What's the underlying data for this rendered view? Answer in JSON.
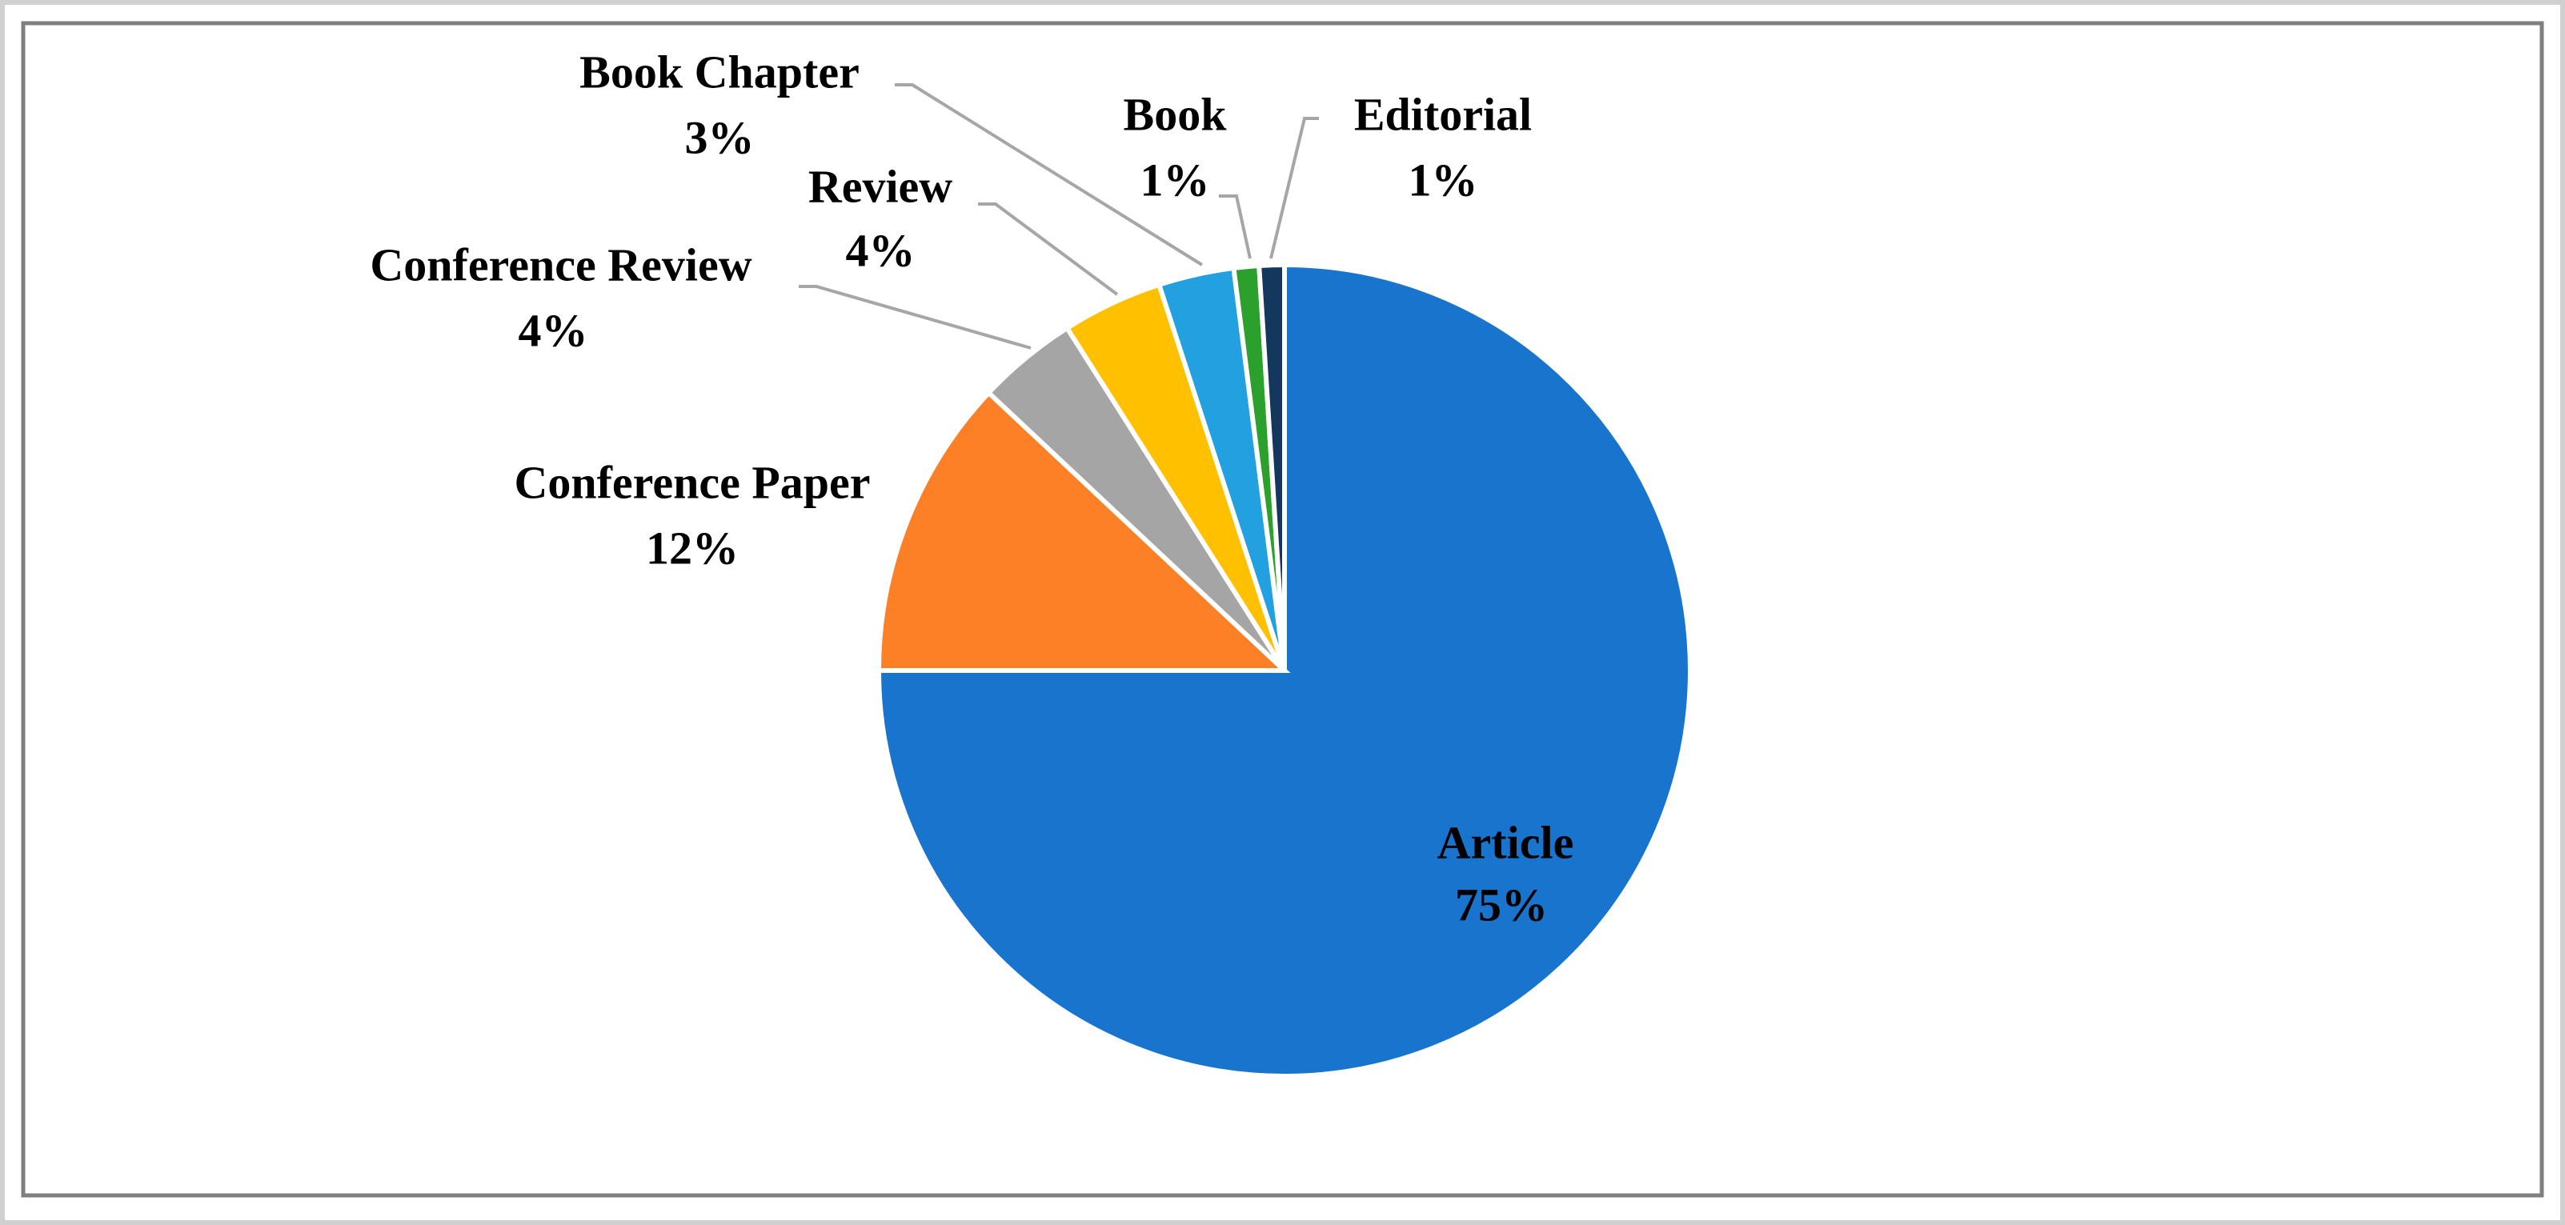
{
  "chart_data": {
    "type": "pie",
    "categories": [
      "Article",
      "Conference Paper",
      "Conference Review",
      "Review",
      "Book Chapter",
      "Book",
      "Editorial"
    ],
    "values": [
      75,
      12,
      4,
      4,
      3,
      1,
      1
    ],
    "value_labels": [
      "75%",
      "12%",
      "4%",
      "4%",
      "3%",
      "1%",
      "1%"
    ],
    "colors": [
      "#1874cd",
      "#fd7f26",
      "#a5a5a5",
      "#ffc000",
      "#22a0e0",
      "#2ca02c",
      "#14375e"
    ]
  }
}
